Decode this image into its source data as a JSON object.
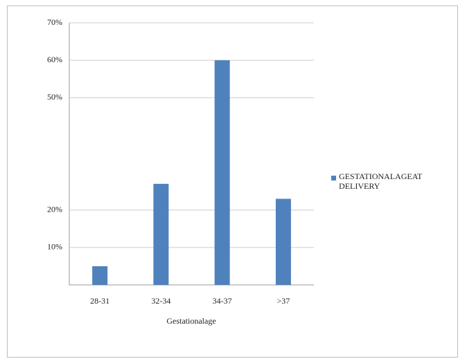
{
  "chart_data": {
    "type": "bar",
    "x_label": "Gestationalage",
    "categories": [
      "28-31",
      "32-34",
      "34-37",
      ">37"
    ],
    "series": [
      {
        "name": "GESTATIONALAGEAT DELIVERY",
        "color": "#4f81bd",
        "values": [
          5,
          27,
          60,
          23
        ]
      }
    ],
    "ylim": [
      0,
      70
    ],
    "yticks": [
      {
        "value": 10,
        "label": "10%"
      },
      {
        "value": 20,
        "label": "20%"
      },
      {
        "value": 50,
        "label": "50%"
      },
      {
        "value": 60,
        "label": "60%"
      },
      {
        "value": 70,
        "label": "70%"
      }
    ],
    "grid": true,
    "legend": "right"
  }
}
